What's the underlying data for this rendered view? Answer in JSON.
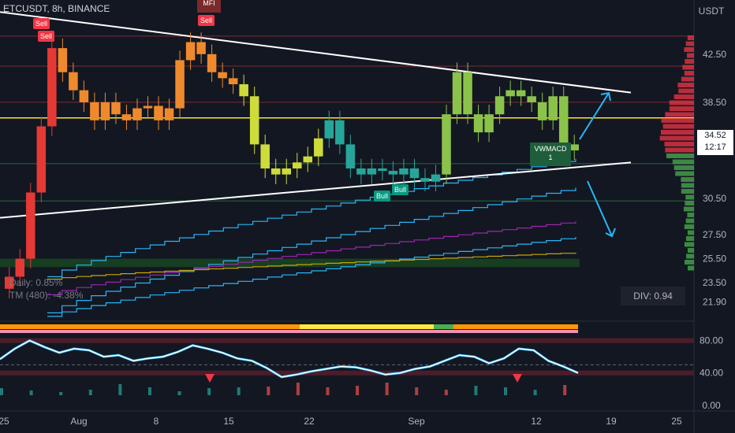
{
  "header": {
    "symbol": "ETCUSDT, 8h, BINANCE"
  },
  "axis": {
    "currency": "USDT",
    "price_ticks": [
      "42.50",
      "38.50",
      "30.50",
      "27.50",
      "25.50",
      "23.50",
      "21.90"
    ],
    "osc_ticks": [
      "80.00",
      "40.00",
      "0.00"
    ],
    "date_ticks": [
      "25",
      "Aug",
      "8",
      "15",
      "22",
      "Sep",
      "12",
      "19",
      "25"
    ]
  },
  "price_label": {
    "price": "34.52",
    "countdown": "12:17"
  },
  "stats": {
    "daily": "Daily: 0.85%",
    "tm": "TM (480): -4.38%"
  },
  "div_label": "DIV: 0.94",
  "signals": {
    "sell_1": "Sell",
    "sell_2": "Sell",
    "sell_3": "Sell",
    "bull_1": "Bull",
    "bull_2": "Bull",
    "mfi": "MFI",
    "vwmacd": "VWMACD",
    "vwmacd_value": "1"
  },
  "colors": {
    "background": "#131722",
    "trendline": "#ffffff",
    "support_fill": "#1b5e20",
    "stair_lines": "#29b6f6",
    "yellow_level": "#f7e425",
    "sell": "#f23645",
    "bull": "#089981"
  },
  "chart_data": {
    "type": "line",
    "price_range": [
      20.5,
      47.0
    ],
    "osc_range": [
      -5,
      100
    ],
    "candle_closes": [
      24.0,
      25.5,
      31.0,
      36.5,
      43.0,
      41.0,
      39.5,
      38.5,
      37.0,
      38.5,
      37.5,
      37.0,
      38.0,
      38.2,
      37.0,
      38.0,
      42.0,
      43.5,
      42.5,
      41.0,
      40.5,
      40.0,
      39.0,
      35.0,
      33.0,
      32.5,
      33.0,
      33.5,
      34.0,
      35.5,
      37.0,
      35.0,
      33.0,
      32.5,
      33.0,
      32.8,
      32.5,
      33.0,
      32.2,
      31.9,
      32.5,
      37.5,
      41.0,
      37.5,
      36.0,
      37.5,
      39.0,
      39.5,
      39.0,
      38.5,
      37.0,
      39.0,
      35.0,
      34.5
    ],
    "horizontal_levels": [
      44.0,
      41.5,
      38.5,
      37.2,
      33.4,
      30.3
    ],
    "support_zone": [
      24.8,
      25.5
    ],
    "upper_trendline": [
      [
        0,
        46.0
      ],
      [
        800,
        39.3
      ]
    ],
    "lower_trendline": [
      [
        0,
        28.9
      ],
      [
        800,
        33.5
      ]
    ],
    "oscillator": [
      57,
      70,
      80,
      72,
      65,
      70,
      68,
      60,
      62,
      55,
      58,
      60,
      66,
      74,
      70,
      65,
      58,
      55,
      46,
      35,
      38,
      42,
      45,
      48,
      47,
      43,
      38,
      40,
      45,
      48,
      55,
      62,
      60,
      52,
      58,
      70,
      68,
      55,
      48,
      40
    ],
    "osc_levels": [
      80,
      50,
      40
    ]
  }
}
